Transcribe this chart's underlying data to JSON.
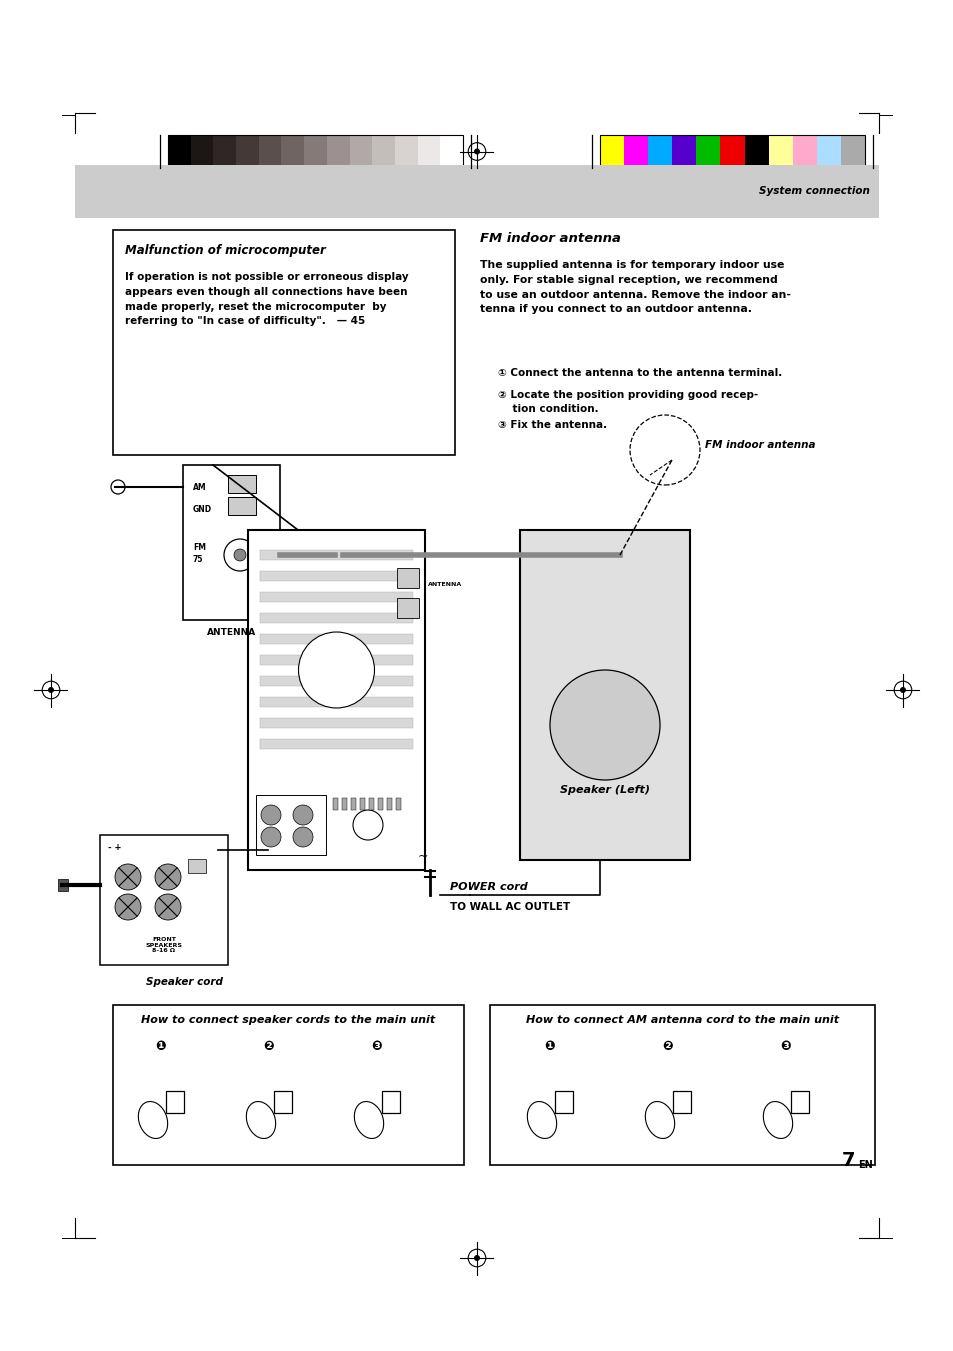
{
  "page_width": 9.54,
  "page_height": 13.51,
  "bg_color": "#ffffff",
  "gray_band_color": "#cccccc",
  "colors_left": [
    "#000000",
    "#1c1614",
    "#2e2725",
    "#433a38",
    "#59504e",
    "#6e6462",
    "#847b79",
    "#9a9190",
    "#b0a9a7",
    "#c4bebb",
    "#d8d3d1",
    "#ebe8e7",
    "#ffffff"
  ],
  "colors_right": [
    "#ffff00",
    "#ff00ff",
    "#00aaff",
    "#5500cc",
    "#00bb00",
    "#ee0000",
    "#000000",
    "#ffff99",
    "#ffaacc",
    "#aaddff",
    "#aaaaaa"
  ],
  "system_connection_label": "System connection",
  "malfunction_title": "Malfunction of microcomputer",
  "malfunction_body": "If operation is not possible or erroneous display\nappears even though all connections have been\nmade properly, reset the microcomputer  by\nreferring to \"In case of difficulty\".   — 45",
  "fm_title": "FM indoor antenna",
  "fm_body": "The supplied antenna is for temporary indoor use\nonly. For stable signal reception, we recommend\nto use an outdoor antenna. Remove the indoor an-\ntenna if you connect to an outdoor antenna.",
  "fm_step1": "① Connect the antenna to the antenna terminal.",
  "fm_step2": "② Locate the position providing good recep-\n    tion condition.",
  "fm_step3": "③ Fix the antenna.",
  "fm_indoor_label": "FM indoor antenna",
  "antenna_label": "ANTENNA",
  "speaker_left_label": "Speaker (Left)",
  "power_cord_label": "POWER cord",
  "wall_ac_label": "TO WALL AC OUTLET",
  "speaker_cord_label": "Speaker cord",
  "front_speakers_label": "FRONT\nSPEAKERS\n8-16 Ω",
  "bottom_box1_title": "How to connect speaker cords to the main unit",
  "bottom_box2_title": "How to connect AM antenna cord to the main unit",
  "page_number": "7",
  "page_number_sup": "EN"
}
